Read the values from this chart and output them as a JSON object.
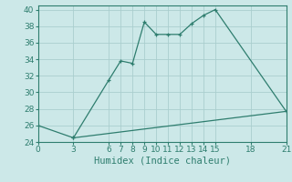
{
  "title": "",
  "xlabel": "Humidex (Indice chaleur)",
  "ylabel": "",
  "bg_color": "#cce8e8",
  "grid_color": "#aacece",
  "line_color": "#2e7d6e",
  "xlim": [
    0,
    21
  ],
  "ylim": [
    24,
    40.5
  ],
  "xticks": [
    0,
    3,
    6,
    7,
    8,
    9,
    10,
    11,
    12,
    13,
    14,
    15,
    18,
    21
  ],
  "yticks": [
    24,
    26,
    28,
    30,
    32,
    34,
    36,
    38,
    40
  ],
  "series1_x": [
    3,
    6,
    7,
    8,
    9,
    10,
    11,
    12,
    13,
    14,
    15,
    21
  ],
  "series1_y": [
    24.5,
    31.5,
    33.8,
    33.5,
    38.5,
    37.0,
    37.0,
    37.0,
    38.3,
    39.3,
    40.0,
    27.7
  ],
  "series2_x": [
    0,
    3,
    21
  ],
  "series2_y": [
    26.0,
    24.5,
    27.7
  ],
  "xlabel_fontsize": 7.5,
  "tick_fontsize": 6.5
}
